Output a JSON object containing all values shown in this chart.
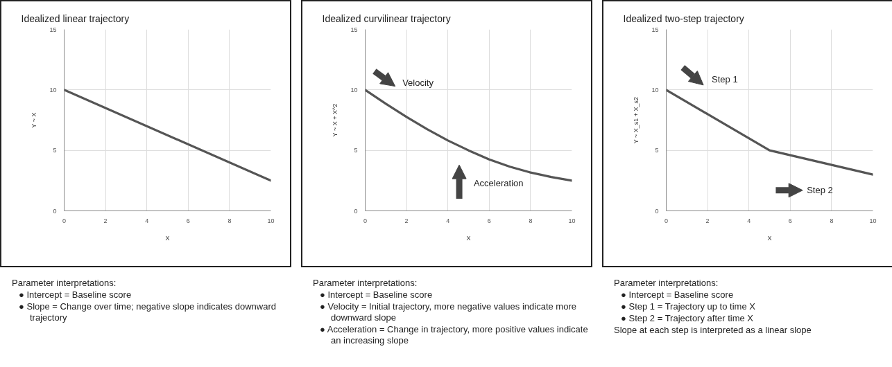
{
  "chart_data": [
    {
      "type": "line",
      "title": "Idealized linear trajectory",
      "xlabel": "X",
      "ylabel": "Y ~ X",
      "x": [
        0,
        10
      ],
      "values": [
        10,
        2.5
      ],
      "color": "#555555",
      "xlim": [
        0,
        10
      ],
      "ylim": [
        0,
        15
      ],
      "xticks": [
        0,
        2,
        4,
        6,
        8,
        10
      ],
      "yticks": [
        0,
        5,
        10,
        15
      ],
      "grid": true,
      "marker": "none",
      "line_style": "solid",
      "annotations": [
        "Parameter interpretations:",
        "●  Intercept = Baseline score",
        "●  Slope = Change over time; negative slope indicates downward trajectory"
      ]
    },
    {
      "type": "line",
      "title": "Idealized curvilinear trajectory",
      "xlabel": "X",
      "ylabel": "Y ~ X + X^2",
      "x": [
        0,
        1,
        2,
        3,
        4,
        5,
        6,
        7,
        8,
        9,
        10
      ],
      "values": [
        10,
        8.85,
        7.77,
        6.75,
        5.82,
        5.0,
        4.25,
        3.65,
        3.17,
        2.8,
        2.5
      ],
      "color": "#555555",
      "xlim": [
        0,
        10
      ],
      "ylim": [
        0,
        15
      ],
      "xticks": [
        0,
        2,
        4,
        6,
        8,
        10
      ],
      "yticks": [
        0,
        5,
        10,
        15
      ],
      "grid": true,
      "marker": "none",
      "line_style": "solid",
      "annotations": [
        "Velocity",
        "Acceleration",
        "Parameter interpretations:",
        "●  Intercept = Baseline score",
        "●  Velocity = Initial trajectory, more negative values indicate more downward slope",
        "●  Acceleration = Change in trajectory, more positive values indicate an increasing slope"
      ]
    },
    {
      "type": "line",
      "title": "Idealized two-step trajectory",
      "xlabel": "X",
      "ylabel": "Y ~ X_s1 + X_s2",
      "x": [
        0,
        5,
        10
      ],
      "values": [
        10,
        5,
        3
      ],
      "color": "#555555",
      "xlim": [
        0,
        10
      ],
      "ylim": [
        0,
        15
      ],
      "xticks": [
        0,
        2,
        4,
        6,
        8,
        10
      ],
      "yticks": [
        0,
        5,
        10,
        15
      ],
      "grid": true,
      "marker": "none",
      "line_style": "solid",
      "annotations": [
        "Step 1",
        "Step 2",
        "Parameter interpretations:",
        "●  Intercept = Baseline score",
        "●  Step 1 = Trajectory up to time X",
        "●  Step 2 = Trajectory after time X",
        "Slope at each step is interpreted as a linear slope"
      ]
    }
  ]
}
